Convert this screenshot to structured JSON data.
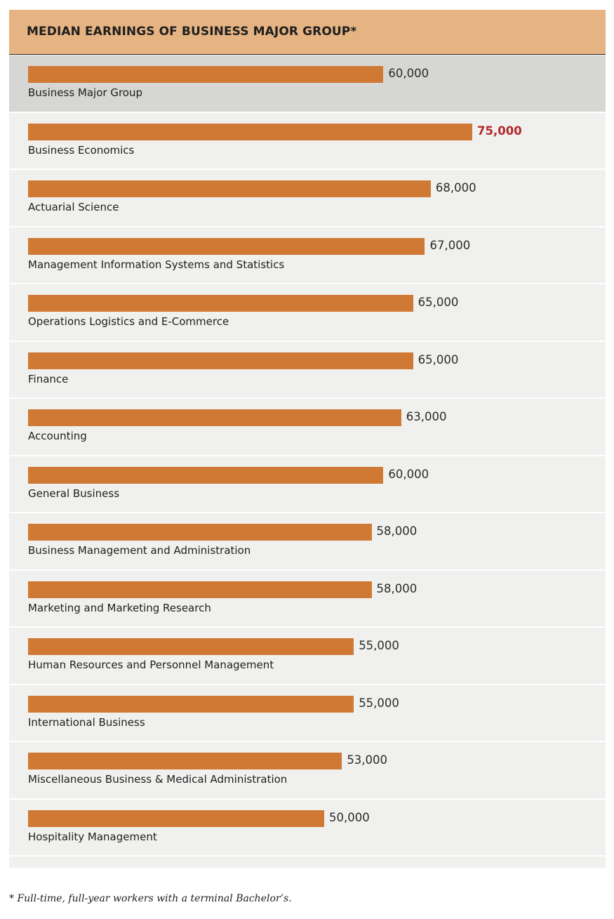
{
  "chart_data": {
    "type": "bar",
    "orientation": "horizontal",
    "title": "MEDIAN EARNINGS OF BUSINESS MAJOR GROUP*",
    "xlabel": "",
    "ylabel": "",
    "xlim": [
      0,
      80000
    ],
    "categories": [
      "Business Major Group",
      "Business Economics",
      "Actuarial Science",
      "Management Information Systems and Statistics",
      "Operations Logistics and E-Commerce",
      "Finance",
      "Accounting",
      "General Business",
      "Business Management and Administration",
      "Marketing and Marketing Research",
      "Human Resources and Personnel Management",
      "International Business",
      "Miscellaneous Business & Medical Administration",
      "Hospitality Management"
    ],
    "values": [
      60000,
      75000,
      68000,
      67000,
      65000,
      65000,
      63000,
      60000,
      58000,
      58000,
      55000,
      55000,
      53000,
      50000
    ],
    "value_labels": [
      "60,000",
      "75,000",
      "68,000",
      "67,000",
      "65,000",
      "65,000",
      "63,000",
      "60,000",
      "58,000",
      "58,000",
      "55,000",
      "55,000",
      "53,000",
      "50,000"
    ],
    "highlight_row": "Business Major Group",
    "emphasized_value": "Business Economics",
    "footnote": "* Full-time, full-year workers with a terminal Bachelor’s."
  },
  "colors": {
    "header_bg": "#e6b483",
    "bar": "#cf7935",
    "panel_bg": "#f0f0ee",
    "highlight_bg": "#d6d6d4",
    "emphasis_text": "#b22a2a"
  }
}
